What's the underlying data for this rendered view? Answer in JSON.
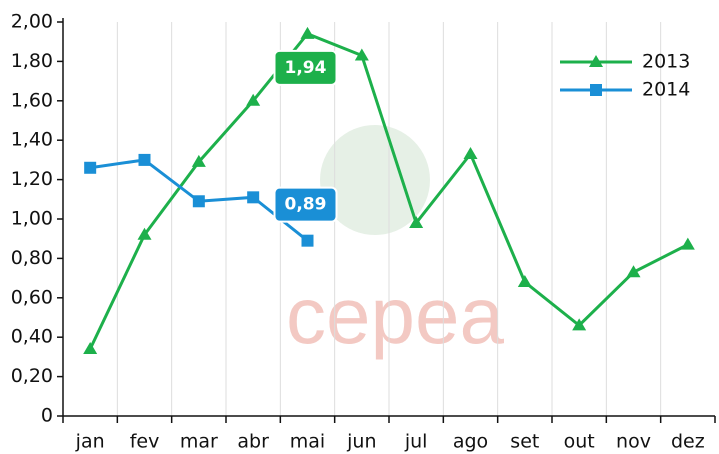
{
  "chart_data": {
    "type": "line",
    "categories": [
      "jan",
      "fev",
      "mar",
      "abr",
      "mai",
      "jun",
      "jul",
      "ago",
      "set",
      "out",
      "nov",
      "dez"
    ],
    "series": [
      {
        "name": "2013",
        "color": "#1db04b",
        "marker": "triangle",
        "values": [
          0.34,
          0.92,
          1.29,
          1.6,
          1.94,
          1.83,
          0.98,
          1.33,
          0.68,
          0.46,
          0.73,
          0.87
        ],
        "value_labels": [
          null,
          null,
          null,
          null,
          "1,94",
          null,
          null,
          null,
          null,
          null,
          null,
          null
        ]
      },
      {
        "name": "2014",
        "color": "#1a8fd6",
        "marker": "square",
        "values": [
          1.26,
          1.3,
          1.09,
          1.11,
          0.89,
          null,
          null,
          null,
          null,
          null,
          null,
          null
        ],
        "value_labels": [
          null,
          null,
          null,
          null,
          "0,89",
          null,
          null,
          null,
          null,
          null,
          null,
          null
        ]
      }
    ],
    "ylim": [
      0,
      2.0
    ],
    "yticks": [
      0,
      {
        "value": 0.2,
        "label": "0,20"
      },
      {
        "value": 0.4,
        "label": "0,40"
      },
      {
        "value": 0.6,
        "label": "0,60"
      },
      {
        "value": 0.8,
        "label": "0,80"
      },
      {
        "value": 1.0,
        "label": "1,00"
      },
      {
        "value": 1.2,
        "label": "1,20"
      },
      {
        "value": 1.4,
        "label": "1,40"
      },
      {
        "value": 1.6,
        "label": "1,60"
      },
      {
        "value": 1.8,
        "label": "1,80"
      },
      {
        "value": 2.0,
        "label": "2,00"
      }
    ],
    "grid": true,
    "legend": "top-right",
    "watermark": "cepea"
  }
}
